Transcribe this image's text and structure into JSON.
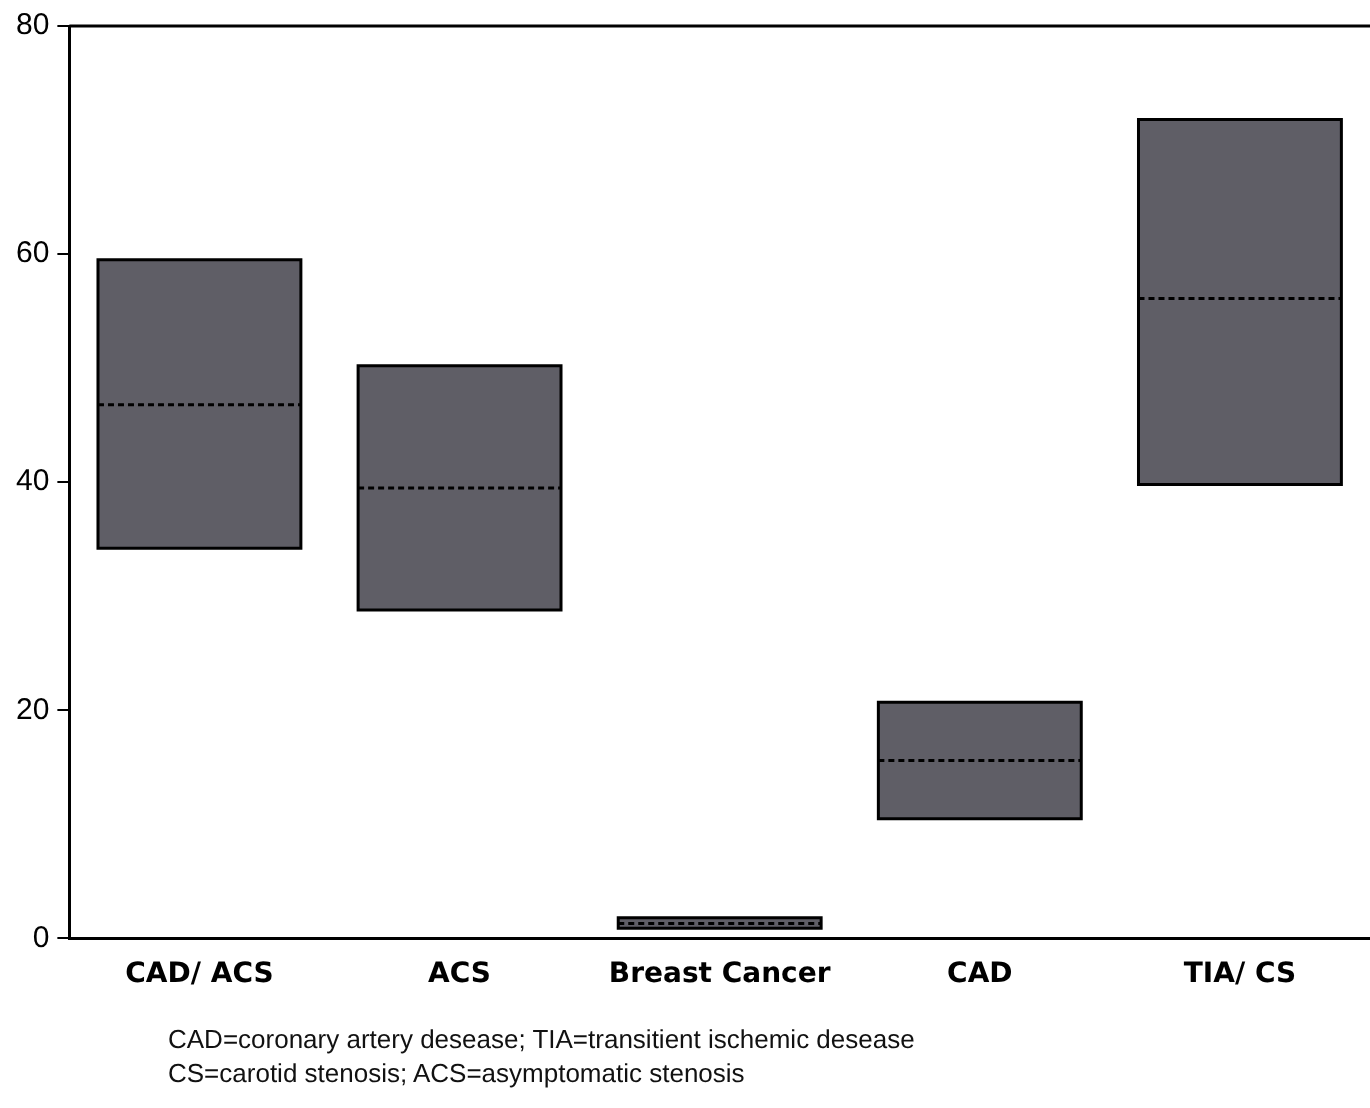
{
  "chart_data": {
    "type": "box",
    "categories": [
      "CAD/ ACS",
      "ACS",
      "Breast Cancer",
      "CAD",
      "TIA/ CS"
    ],
    "series": [
      {
        "color": "#5f5e66",
        "boxes": [
          {
            "low": 34.2,
            "q1": 34.2,
            "median": 46.8,
            "q3": 59.5,
            "high": 59.5
          },
          {
            "low": 28.8,
            "q1": 28.8,
            "median": 39.5,
            "q3": 50.2,
            "high": 50.2
          },
          {
            "low": 0.9,
            "q1": 0.9,
            "median": 1.3,
            "q3": 1.8,
            "high": 1.8
          },
          {
            "low": 10.5,
            "q1": 10.5,
            "median": 15.6,
            "q3": 20.7,
            "high": 20.7
          },
          {
            "low": 39.8,
            "q1": 39.8,
            "median": 56.1,
            "q3": 71.8,
            "high": 71.8
          }
        ]
      }
    ],
    "ylim": [
      0,
      80
    ],
    "yticks": [
      0,
      20,
      40,
      60,
      80
    ],
    "grid": false,
    "legend": false,
    "annotations": [
      "CAD=coronary artery desease; TIA=transitient ischemic desease",
      "CS=carotid stenosis; ACS=asymptomatic stenosis"
    ]
  }
}
